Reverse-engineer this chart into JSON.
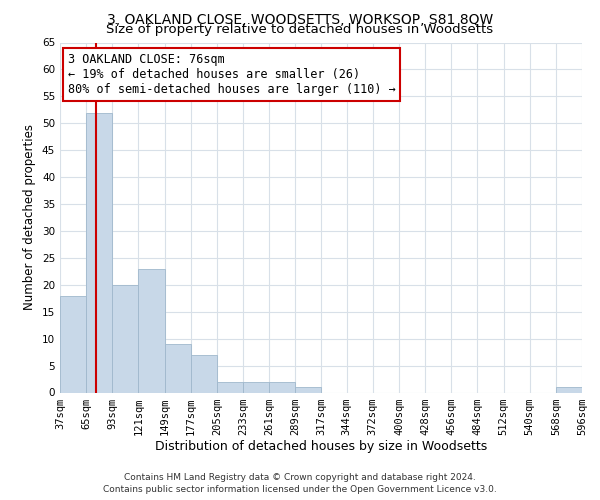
{
  "title": "3, OAKLAND CLOSE, WOODSETTS, WORKSOP, S81 8QW",
  "subtitle": "Size of property relative to detached houses in Woodsetts",
  "xlabel": "Distribution of detached houses by size in Woodsetts",
  "ylabel": "Number of detached properties",
  "bin_edges": [
    37,
    65,
    93,
    121,
    149,
    177,
    205,
    233,
    261,
    289,
    317,
    344,
    372,
    400,
    428,
    456,
    484,
    512,
    540,
    568,
    596
  ],
  "bar_heights": [
    18,
    52,
    20,
    23,
    9,
    7,
    2,
    2,
    2,
    1,
    0,
    0,
    0,
    0,
    0,
    0,
    0,
    0,
    0,
    1
  ],
  "bar_color": "#c8d8e8",
  "bar_edge_color": "#a0b8cc",
  "vline_x": 76,
  "vline_color": "#cc0000",
  "annotation_line1": "3 OAKLAND CLOSE: 76sqm",
  "annotation_line2": "← 19% of detached houses are smaller (26)",
  "annotation_line3": "80% of semi-detached houses are larger (110) →",
  "annotation_box_color": "#ffffff",
  "annotation_box_edge_color": "#cc0000",
  "ylim": [
    0,
    65
  ],
  "yticks": [
    0,
    5,
    10,
    15,
    20,
    25,
    30,
    35,
    40,
    45,
    50,
    55,
    60,
    65
  ],
  "footer_line1": "Contains HM Land Registry data © Crown copyright and database right 2024.",
  "footer_line2": "Contains public sector information licensed under the Open Government Licence v3.0.",
  "background_color": "#ffffff",
  "grid_color": "#d8e0e8",
  "title_fontsize": 10,
  "subtitle_fontsize": 9.5,
  "xlabel_fontsize": 9,
  "ylabel_fontsize": 8.5,
  "tick_fontsize": 7.5,
  "annotation_fontsize": 8.5,
  "footer_fontsize": 6.5
}
